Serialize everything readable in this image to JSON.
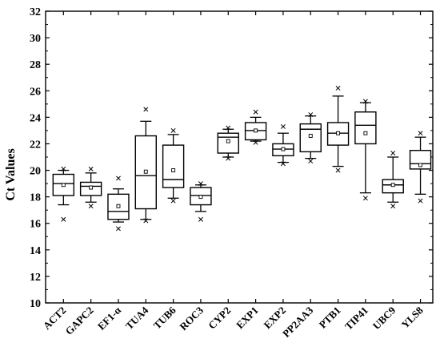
{
  "chart_data": {
    "type": "box",
    "ylabel": "Ct Values",
    "ylim": [
      10,
      32
    ],
    "yticks": [
      "10",
      "12",
      "14",
      "16",
      "18",
      "20",
      "22",
      "24",
      "26",
      "28",
      "30",
      "32"
    ],
    "categories": [
      "ACT2",
      "GAPC2",
      "EF1-α",
      "TUA4",
      "TUB6",
      "ROC3",
      "CYP2",
      "EXP1",
      "EXP2",
      "PP2AA3",
      "PTB1",
      "TIP41",
      "UBC9",
      "YLS8"
    ],
    "boxes": [
      {
        "label": "ACT2",
        "whisker_low": 17.4,
        "q1": 18.1,
        "median": 19.0,
        "q3": 19.7,
        "whisker_high": 20.0,
        "mean": 18.9,
        "min": 16.3,
        "max": 20.1
      },
      {
        "label": "GAPC2",
        "whisker_low": 17.6,
        "q1": 18.1,
        "median": 18.8,
        "q3": 19.1,
        "whisker_high": 19.8,
        "mean": 18.7,
        "min": 17.3,
        "max": 20.1
      },
      {
        "label": "EF1-α",
        "whisker_low": 16.1,
        "q1": 16.3,
        "median": 16.9,
        "q3": 18.2,
        "whisker_high": 18.6,
        "mean": 17.3,
        "min": 15.6,
        "max": 19.4
      },
      {
        "label": "TUA4",
        "whisker_low": 16.3,
        "q1": 17.1,
        "median": 19.6,
        "q3": 22.6,
        "whisker_high": 23.7,
        "mean": 19.9,
        "min": 16.2,
        "max": 24.6
      },
      {
        "label": "TUB6",
        "whisker_low": 17.9,
        "q1": 18.7,
        "median": 19.3,
        "q3": 21.9,
        "whisker_high": 22.7,
        "mean": 20.0,
        "min": 17.7,
        "max": 23.0
      },
      {
        "label": "ROC3",
        "whisker_low": 16.9,
        "q1": 17.4,
        "median": 18.1,
        "q3": 18.7,
        "whisker_high": 18.9,
        "mean": 18.0,
        "min": 16.3,
        "max": 19.0
      },
      {
        "label": "CYP2",
        "whisker_low": 21.0,
        "q1": 21.3,
        "median": 22.5,
        "q3": 22.8,
        "whisker_high": 23.1,
        "mean": 22.2,
        "min": 20.9,
        "max": 23.2
      },
      {
        "label": "EXP1",
        "whisker_low": 22.2,
        "q1": 22.3,
        "median": 23.0,
        "q3": 23.6,
        "whisker_high": 24.0,
        "mean": 23.0,
        "min": 22.1,
        "max": 24.4
      },
      {
        "label": "EXP2",
        "whisker_low": 20.6,
        "q1": 21.1,
        "median": 21.6,
        "q3": 22.0,
        "whisker_high": 22.8,
        "mean": 21.6,
        "min": 20.5,
        "max": 23.3
      },
      {
        "label": "PP2AA3",
        "whisker_low": 20.9,
        "q1": 21.4,
        "median": 23.1,
        "q3": 23.5,
        "whisker_high": 24.1,
        "mean": 22.6,
        "min": 20.7,
        "max": 24.2
      },
      {
        "label": "PTB1",
        "whisker_low": 20.3,
        "q1": 21.9,
        "median": 22.8,
        "q3": 23.6,
        "whisker_high": 25.6,
        "mean": 22.8,
        "min": 20.0,
        "max": 26.2
      },
      {
        "label": "TIP41",
        "whisker_low": 18.3,
        "q1": 22.0,
        "median": 23.4,
        "q3": 24.4,
        "whisker_high": 25.1,
        "mean": 22.8,
        "min": 17.9,
        "max": 25.2
      },
      {
        "label": "UBC9",
        "whisker_low": 17.6,
        "q1": 18.3,
        "median": 18.9,
        "q3": 19.3,
        "whisker_high": 21.0,
        "mean": 18.9,
        "min": 17.3,
        "max": 21.3
      },
      {
        "label": "YLS8",
        "whisker_low": 18.2,
        "q1": 20.1,
        "median": 20.5,
        "q3": 21.5,
        "whisker_high": 22.5,
        "mean": 20.4,
        "min": 17.7,
        "max": 22.8
      }
    ]
  }
}
